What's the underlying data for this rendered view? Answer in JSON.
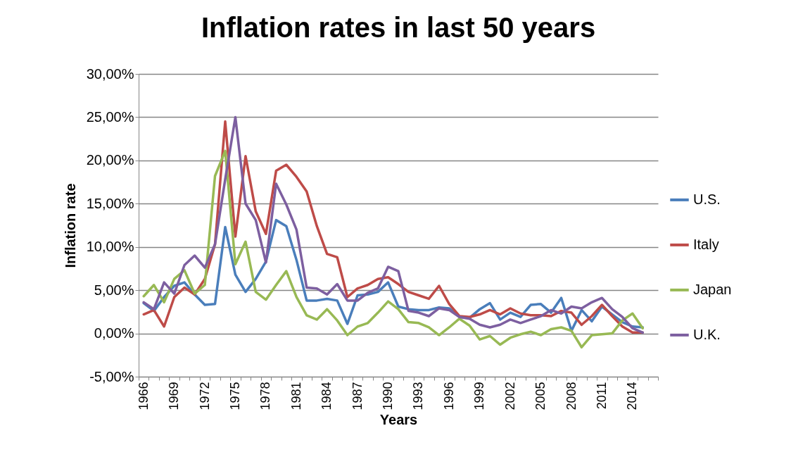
{
  "chart_data": {
    "type": "line",
    "title": "Inflation rates in last 50 years",
    "xlabel": "Years",
    "ylabel": "Inflation rate",
    "categories": [
      "1966",
      null,
      null,
      "1969",
      null,
      null,
      "1972",
      null,
      null,
      "1975",
      null,
      null,
      "1978",
      null,
      null,
      "1981",
      null,
      null,
      "1984",
      null,
      null,
      "1987",
      null,
      null,
      "1990",
      null,
      null,
      "1993",
      null,
      null,
      "1996",
      null,
      null,
      "1999",
      null,
      null,
      "2002",
      null,
      null,
      "2005",
      null,
      null,
      "2008",
      null,
      null,
      "2011",
      null,
      null,
      "2014",
      null,
      null
    ],
    "series": [
      {
        "name": "U.S.",
        "color": "#4a7ebb",
        "values": [
          3.5,
          2.6,
          4.2,
          5.5,
          5.9,
          4.5,
          3.3,
          3.4,
          12.3,
          6.8,
          4.8,
          6.3,
          8.3,
          13.1,
          12.4,
          8.5,
          3.8,
          3.8,
          4.0,
          3.8,
          1.1,
          4.4,
          4.5,
          4.8,
          5.9,
          3.1,
          2.8,
          2.7,
          2.7,
          3.0,
          2.9,
          1.9,
          1.8,
          2.8,
          3.5,
          1.6,
          2.4,
          1.9,
          3.3,
          3.4,
          2.4,
          4.1,
          0.3,
          2.7,
          1.4,
          3.1,
          2.2,
          1.3,
          0.8,
          0.7,
          null
        ]
      },
      {
        "name": "Italy",
        "color": "#be4b48",
        "values": [
          2.2,
          2.7,
          0.8,
          4.2,
          5.3,
          4.5,
          6.3,
          10.3,
          24.5,
          11.2,
          20.5,
          14.1,
          11.5,
          18.8,
          19.5,
          18.1,
          16.4,
          12.4,
          9.2,
          8.8,
          4.2,
          5.2,
          5.6,
          6.3,
          6.5,
          5.7,
          4.8,
          4.4,
          4.0,
          5.5,
          3.4,
          2.0,
          1.9,
          2.2,
          2.7,
          2.2,
          2.9,
          2.3,
          2.1,
          2.1,
          2.0,
          2.6,
          2.4,
          1.0,
          2.0,
          3.3,
          2.0,
          0.8,
          0.1,
          0.1,
          null
        ]
      },
      {
        "name": "Japan",
        "color": "#98b954",
        "values": [
          4.3,
          5.6,
          3.6,
          6.3,
          7.3,
          4.6,
          5.6,
          18.2,
          21.1,
          8.0,
          10.6,
          4.8,
          3.9,
          5.6,
          7.2,
          4.2,
          2.1,
          1.6,
          2.8,
          1.5,
          -0.2,
          0.8,
          1.2,
          2.4,
          3.7,
          2.8,
          1.3,
          1.2,
          0.7,
          -0.2,
          0.7,
          1.7,
          0.9,
          -0.7,
          -0.3,
          -1.3,
          -0.5,
          -0.1,
          0.2,
          -0.2,
          0.5,
          0.7,
          0.3,
          -1.6,
          -0.2,
          -0.1,
          0.0,
          1.5,
          2.3,
          0.6,
          null
        ]
      },
      {
        "name": "U.K.",
        "color": "#7d5fa0",
        "values": [
          3.6,
          2.8,
          5.9,
          4.6,
          7.9,
          9.0,
          7.6,
          10.3,
          17.8,
          25.0,
          15.0,
          13.1,
          8.2,
          17.3,
          14.9,
          12.0,
          5.3,
          5.2,
          4.5,
          5.7,
          3.8,
          3.8,
          4.7,
          5.2,
          7.7,
          7.2,
          2.6,
          2.4,
          2.0,
          2.9,
          2.7,
          1.9,
          1.7,
          1.0,
          0.7,
          1.0,
          1.6,
          1.2,
          1.6,
          2.0,
          2.7,
          2.3,
          3.1,
          2.9,
          3.6,
          4.1,
          2.8,
          1.9,
          0.6,
          0.1,
          null
        ]
      }
    ],
    "ylim": [
      -5,
      30
    ],
    "yticks": [
      {
        "value": -5,
        "label": "-5,00%"
      },
      {
        "value": 0,
        "label": "0,00%"
      },
      {
        "value": 5,
        "label": "5,00%"
      },
      {
        "value": 10,
        "label": "10,00%"
      },
      {
        "value": 15,
        "label": "15,00%"
      },
      {
        "value": 20,
        "label": "20,00%"
      },
      {
        "value": 25,
        "label": "25,00%"
      },
      {
        "value": 30,
        "label": "30,00%"
      }
    ],
    "grid": "y",
    "legend": "right"
  }
}
